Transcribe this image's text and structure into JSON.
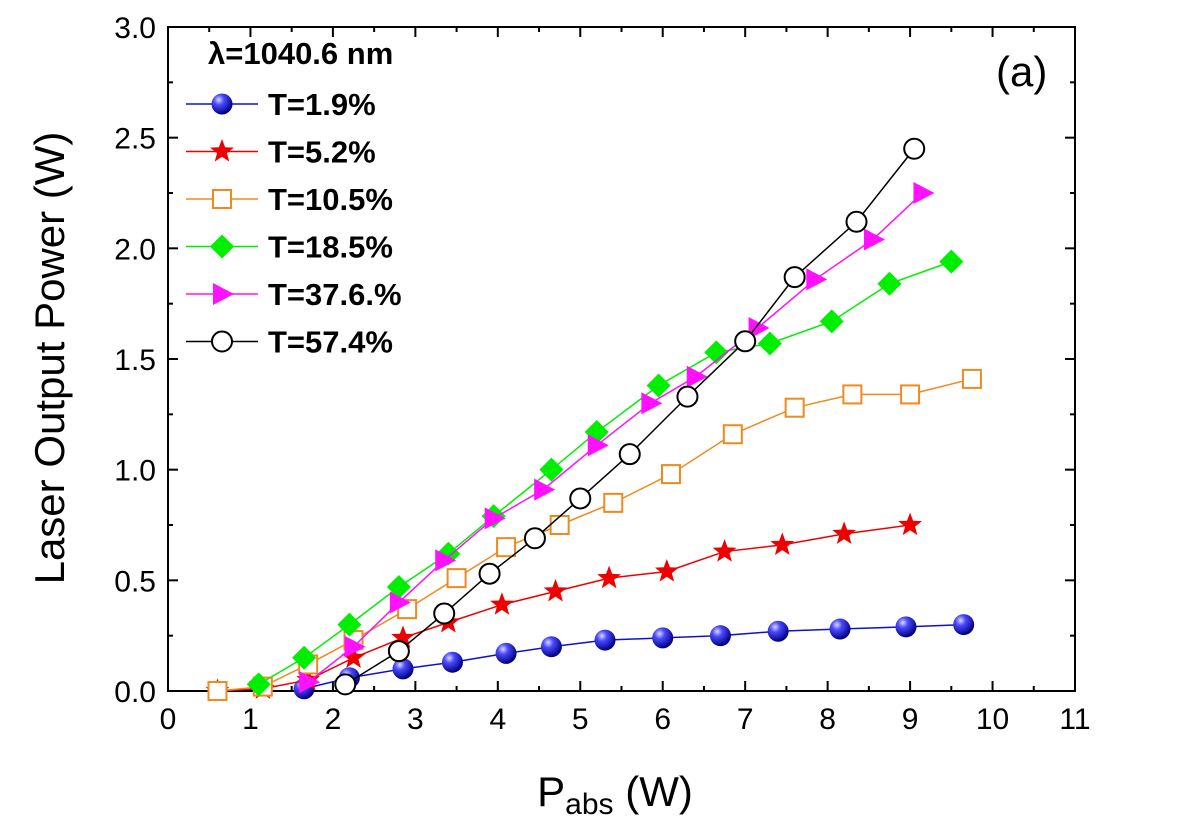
{
  "chart_data": {
    "type": "line",
    "panel_label": "(a)",
    "wavelength_label": "λ=1040.6 nm",
    "xlabel_main": "P",
    "xlabel_sub": "abs",
    "xlabel_unit": " (W)",
    "ylabel": "Laser Output Power (W)",
    "xlim": [
      0,
      11
    ],
    "ylim": [
      0,
      3.0
    ],
    "xticks": [
      "0",
      "1",
      "2",
      "3",
      "4",
      "5",
      "6",
      "7",
      "8",
      "9",
      "10",
      "11"
    ],
    "yticks": [
      "0.0",
      "0.5",
      "1.0",
      "1.5",
      "2.0",
      "2.5",
      "3.0"
    ],
    "grid": false,
    "legend_position": "top-left",
    "series": [
      {
        "name": "T=1.9%",
        "marker": "sphere",
        "color": "#1010d0",
        "x": [
          1.65,
          2.2,
          2.85,
          3.45,
          4.1,
          4.65,
          5.3,
          6.0,
          6.7,
          7.4,
          8.15,
          8.95,
          9.65
        ],
        "y": [
          0.01,
          0.06,
          0.1,
          0.13,
          0.17,
          0.2,
          0.23,
          0.24,
          0.25,
          0.27,
          0.28,
          0.29,
          0.3
        ]
      },
      {
        "name": "T=5.2%",
        "marker": "star",
        "color": "#ee0000",
        "x": [
          0.6,
          1.15,
          1.7,
          2.25,
          2.85,
          3.4,
          4.05,
          4.7,
          5.35,
          6.05,
          6.75,
          7.45,
          8.2,
          9.0
        ],
        "y": [
          0.0,
          0.01,
          0.05,
          0.15,
          0.24,
          0.31,
          0.39,
          0.45,
          0.51,
          0.54,
          0.63,
          0.66,
          0.71,
          0.75
        ]
      },
      {
        "name": "T=10.5%",
        "marker": "open-square",
        "color": "#f08a1e",
        "x": [
          0.6,
          1.15,
          1.7,
          2.25,
          2.9,
          3.5,
          4.1,
          4.75,
          5.4,
          6.1,
          6.85,
          7.6,
          8.3,
          9.0,
          9.75
        ],
        "y": [
          0.0,
          0.02,
          0.12,
          0.23,
          0.37,
          0.51,
          0.65,
          0.75,
          0.85,
          0.98,
          1.16,
          1.28,
          1.34,
          1.34,
          1.41
        ]
      },
      {
        "name": "T=18.5%",
        "marker": "diamond",
        "color": "#00ee00",
        "x": [
          1.1,
          1.65,
          2.2,
          2.8,
          3.4,
          3.95,
          4.65,
          5.2,
          5.95,
          6.65,
          7.3,
          8.05,
          8.75,
          9.5
        ],
        "y": [
          0.03,
          0.15,
          0.3,
          0.47,
          0.62,
          0.79,
          1.0,
          1.17,
          1.38,
          1.53,
          1.57,
          1.67,
          1.84,
          1.94
        ]
      },
      {
        "name": "T=37.6.%",
        "marker": "triangle-right",
        "color": "#ff10ff",
        "x": [
          1.7,
          2.25,
          2.8,
          3.35,
          3.95,
          4.55,
          5.2,
          5.85,
          6.4,
          7.15,
          7.85,
          8.55,
          9.15
        ],
        "y": [
          0.04,
          0.2,
          0.4,
          0.59,
          0.78,
          0.91,
          1.11,
          1.3,
          1.42,
          1.64,
          1.86,
          2.04,
          2.25
        ]
      },
      {
        "name": "T=57.4%",
        "marker": "open-circle",
        "color": "#000000",
        "x": [
          2.15,
          2.8,
          3.35,
          3.9,
          4.45,
          5.0,
          5.6,
          6.3,
          7.0,
          7.6,
          8.35,
          9.05
        ],
        "y": [
          0.03,
          0.18,
          0.35,
          0.53,
          0.69,
          0.87,
          1.07,
          1.33,
          1.58,
          1.87,
          2.12,
          2.45
        ]
      }
    ]
  }
}
